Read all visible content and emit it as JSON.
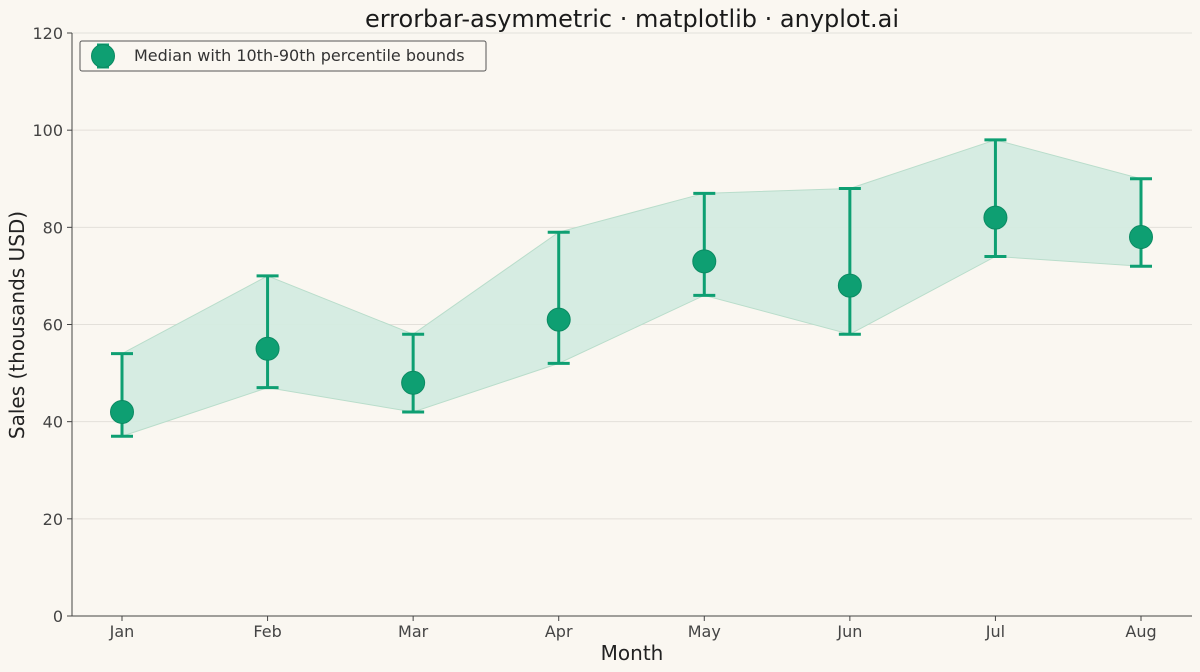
{
  "chart_data": {
    "type": "scatter",
    "title": "errorbar-asymmetric · matplotlib · anyplot.ai",
    "xlabel": "Month",
    "ylabel": "Sales (thousands USD)",
    "categories": [
      "Jan",
      "Feb",
      "Mar",
      "Apr",
      "May",
      "Jun",
      "Jul",
      "Aug"
    ],
    "series": [
      {
        "name": "Median with 10th-90th percentile bounds",
        "median": [
          42,
          55,
          48,
          61,
          73,
          68,
          82,
          78
        ],
        "p10": [
          37,
          47,
          42,
          52,
          66,
          58,
          74,
          72
        ],
        "p90": [
          54,
          70,
          58,
          79,
          87,
          88,
          98,
          90
        ]
      }
    ],
    "ylim": [
      0,
      120
    ],
    "yticks": [
      0,
      20,
      40,
      60,
      80,
      100,
      120
    ],
    "grid": "horizontal",
    "legend_position": "top-left",
    "colors": {
      "marker": "#0E9F72",
      "band": "#D4EBE0",
      "band_edge": "#B9DDCB",
      "background": "#FAF7F1",
      "grid": "#E3E0DA",
      "axis": "#444444"
    }
  }
}
